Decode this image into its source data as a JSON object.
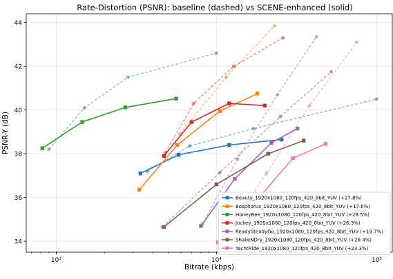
{
  "chart_data": {
    "type": "line",
    "title": "Rate-Distortion (PSNR): baseline (dashed) vs SCENE-enhanced (solid)",
    "xlabel": "Bitrate (kbps)",
    "ylabel": "PSNR-Y (dB)",
    "x_scale": "log",
    "xlim": [
      650,
      125000
    ],
    "ylim": [
      33.5,
      44.4
    ],
    "x_ticks": [
      {
        "value": 1000,
        "label": "10³"
      },
      {
        "value": 10000,
        "label": "10⁴"
      },
      {
        "value": 100000,
        "label": "10⁵"
      }
    ],
    "y_ticks": [
      34,
      36,
      38,
      40,
      42,
      44
    ],
    "grid": true,
    "legend_position": "lower-right",
    "series": [
      {
        "name": "Beauty_1920x1080_120fps_420_8bit_YUV (+27.8%)",
        "color": "#1f77b4",
        "baseline": [
          [
            3700,
            37.2
          ],
          [
            6800,
            38.35
          ],
          [
            17000,
            39.15
          ],
          [
            100000,
            40.5
          ]
        ],
        "enhanced": [
          [
            3350,
            37.1
          ],
          [
            5800,
            37.95
          ],
          [
            12000,
            38.4
          ],
          [
            25500,
            38.65
          ]
        ]
      },
      {
        "name": "Bosphorus_1920x1080_120fps_420_8bit_YUV (+17.6%)",
        "color": "#ff7f0e",
        "baseline": [
          [
            5900,
            38.9
          ],
          [
            11500,
            41.5
          ],
          [
            23000,
            43.85
          ]
        ],
        "enhanced": [
          [
            3300,
            36.35
          ],
          [
            5700,
            38.4
          ],
          [
            10500,
            39.95
          ],
          [
            18000,
            40.75
          ]
        ]
      },
      {
        "name": "HoneyBee_1920x1080_120fps_420_8bit_YUV (+28.5%)",
        "color": "#2ca02c",
        "baseline": [
          [
            900,
            38.2
          ],
          [
            1500,
            40.1
          ],
          [
            2800,
            41.5
          ],
          [
            10000,
            42.6
          ]
        ],
        "enhanced": [
          [
            820,
            38.25
          ],
          [
            1450,
            39.45
          ],
          [
            2700,
            40.12
          ],
          [
            5600,
            40.52
          ]
        ]
      },
      {
        "name": "Jockey_1920x1080_120fps_420_8bit_YUV (+26.3%)",
        "color": "#d62728",
        "baseline": [
          [
            4800,
            38.05
          ],
          [
            7200,
            40.3
          ],
          [
            12800,
            42.0
          ],
          [
            26000,
            43.3
          ]
        ],
        "enhanced": [
          [
            4700,
            37.9
          ],
          [
            7000,
            39.45
          ],
          [
            12000,
            40.3
          ],
          [
            20000,
            40.2
          ]
        ]
      },
      {
        "name": "ReadySteadyGo_1920x1080_120fps_420_8bit_YUV (+19.7%)",
        "color": "#9467bd",
        "baseline": [
          [
            8200,
            34.8
          ],
          [
            13500,
            37.75
          ],
          [
            24000,
            40.7
          ],
          [
            42000,
            43.35
          ]
        ],
        "enhanced": [
          [
            8000,
            34.7
          ],
          [
            13000,
            36.85
          ],
          [
            22000,
            38.5
          ],
          [
            32000,
            39.15
          ]
        ]
      },
      {
        "name": "ShakeNDry_1920x1080_120fps_420_8bit_YUV (+26.4%)",
        "color": "#8c564b",
        "baseline": [
          [
            4600,
            34.65
          ],
          [
            10500,
            37.15
          ],
          [
            25000,
            39.7
          ],
          [
            52000,
            41.75
          ]
        ],
        "enhanced": [
          [
            4700,
            34.65
          ],
          [
            10000,
            36.6
          ],
          [
            21000,
            38.0
          ],
          [
            35000,
            38.6
          ]
        ]
      },
      {
        "name": "YachtRide_1920x1080_120fps_420_8bit_YUV (+23.3%)",
        "color": "#e377c2",
        "baseline": [
          [
            10500,
            33.9
          ],
          [
            20500,
            37.1
          ],
          [
            38000,
            40.2
          ],
          [
            75000,
            43.1
          ]
        ],
        "enhanced": [
          [
            10200,
            33.95
          ],
          [
            19000,
            36.1
          ],
          [
            30000,
            37.8
          ],
          [
            48000,
            38.45
          ]
        ]
      }
    ]
  }
}
